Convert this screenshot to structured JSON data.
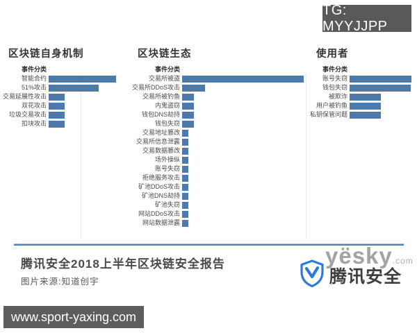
{
  "badges": {
    "tg": "TG: MYYJJPP",
    "site": "www.sport-yaxing.com"
  },
  "footer": {
    "title": "腾讯安全2018上半年区块链安全报告",
    "source": "图片来源:知道创宇",
    "logo_text": "腾讯安全",
    "watermark": "yësky",
    "watermark_suffix": ".com"
  },
  "colors": {
    "bar": "#4d7aab",
    "divider": "#4a82ba",
    "badge_bg": "#59595b",
    "logo_blue": "#2b7ae0"
  },
  "chart_data": [
    {
      "type": "bar",
      "orientation": "horizontal",
      "title": "区块链自身机制",
      "column_header": "事件分类",
      "unit": "relative (no numeric axis shown)",
      "categories": [
        "智能合约",
        "51%攻击",
        "交易延展性攻击",
        "双花攻击",
        "垃圾交易攻击",
        "扣块攻击"
      ],
      "values": [
        97,
        72,
        23,
        23,
        23,
        23
      ]
    },
    {
      "type": "bar",
      "orientation": "horizontal",
      "title": "区块链生态",
      "column_header": "事件分类",
      "unit": "relative (no numeric axis shown)",
      "categories": [
        "交易所被盗",
        "交易所DDoS攻击",
        "交易所被钓鱼",
        "内鬼盗窃",
        "钱包DNS劫持",
        "钱包失窃",
        "交易地址篡改",
        "交易所信息泄露",
        "交易数据篡改",
        "场外操纵",
        "账号失窃",
        "拒绝服务攻击",
        "矿池DDoS攻击",
        "矿池DNS劫持",
        "矿池失窃",
        "网站DDoS攻击",
        "网站数据泄露"
      ],
      "values": [
        175,
        33,
        17,
        17,
        17,
        17,
        9,
        9,
        9,
        9,
        9,
        9,
        9,
        9,
        9,
        9,
        9
      ]
    },
    {
      "type": "bar",
      "orientation": "horizontal",
      "title": "使用者",
      "column_header": "事件分类",
      "unit": "relative (no numeric axis shown)",
      "categories": [
        "账号失窃",
        "钱包失窃",
        "被欺诈",
        "用户被钓鱼",
        "私钥保管问题"
      ],
      "values": [
        89,
        88,
        45,
        45,
        45
      ]
    }
  ]
}
